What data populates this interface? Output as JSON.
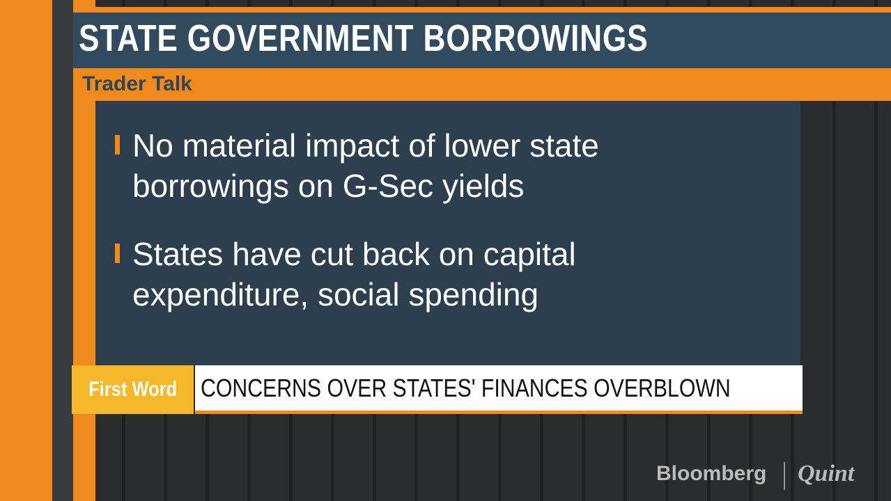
{
  "header": {
    "title": "STATE GOVERNMENT BORROWINGS",
    "subtitle": "Trader Talk"
  },
  "bullets": [
    "No material impact of lower state borrowings on G-Sec yields",
    "States have cut back on capital expenditure, social spending"
  ],
  "ticker": {
    "tag": "First Word",
    "headline": "CONCERNS OVER STATES' FINANCES OVERBLOWN"
  },
  "logo": {
    "brand": "Bloomberg",
    "partner": "Quint"
  }
}
